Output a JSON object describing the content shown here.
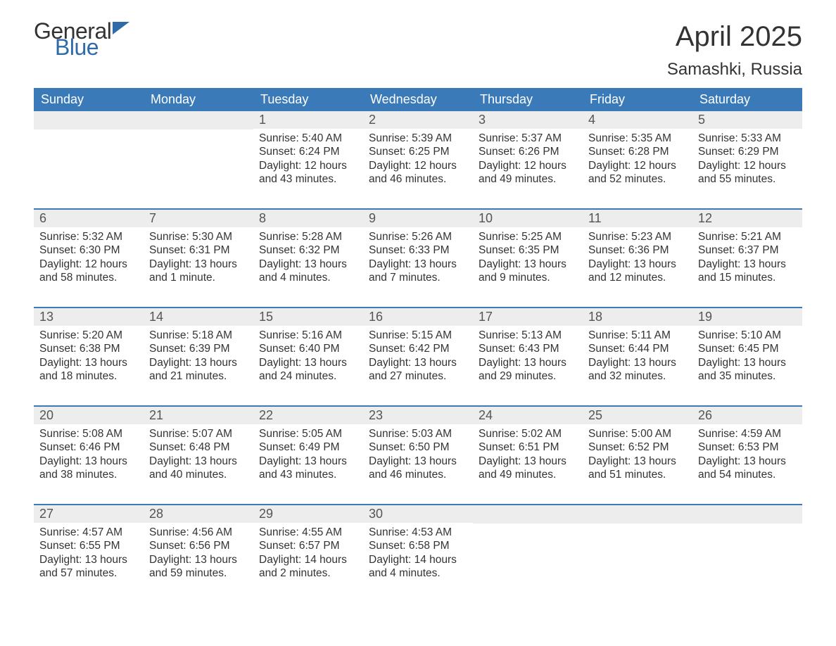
{
  "logo": {
    "text1": "General",
    "text2": "Blue"
  },
  "header": {
    "month_title": "April 2025",
    "location": "Samashki, Russia"
  },
  "colors": {
    "header_bg": "#3a7ab8",
    "header_text": "#ffffff",
    "date_bar_bg": "#ededed",
    "date_bar_text": "#555555",
    "body_text": "#333333",
    "accent_rule": "#3a7ab8",
    "logo_blue": "#2f6ba8",
    "page_bg": "#ffffff"
  },
  "day_names": [
    "Sunday",
    "Monday",
    "Tuesday",
    "Wednesday",
    "Thursday",
    "Friday",
    "Saturday"
  ],
  "weeks": [
    [
      {
        "date": "",
        "sunrise": "",
        "sunset": "",
        "daylight": ""
      },
      {
        "date": "",
        "sunrise": "",
        "sunset": "",
        "daylight": ""
      },
      {
        "date": "1",
        "sunrise": "Sunrise: 5:40 AM",
        "sunset": "Sunset: 6:24 PM",
        "daylight": "Daylight: 12 hours and 43 minutes."
      },
      {
        "date": "2",
        "sunrise": "Sunrise: 5:39 AM",
        "sunset": "Sunset: 6:25 PM",
        "daylight": "Daylight: 12 hours and 46 minutes."
      },
      {
        "date": "3",
        "sunrise": "Sunrise: 5:37 AM",
        "sunset": "Sunset: 6:26 PM",
        "daylight": "Daylight: 12 hours and 49 minutes."
      },
      {
        "date": "4",
        "sunrise": "Sunrise: 5:35 AM",
        "sunset": "Sunset: 6:28 PM",
        "daylight": "Daylight: 12 hours and 52 minutes."
      },
      {
        "date": "5",
        "sunrise": "Sunrise: 5:33 AM",
        "sunset": "Sunset: 6:29 PM",
        "daylight": "Daylight: 12 hours and 55 minutes."
      }
    ],
    [
      {
        "date": "6",
        "sunrise": "Sunrise: 5:32 AM",
        "sunset": "Sunset: 6:30 PM",
        "daylight": "Daylight: 12 hours and 58 minutes."
      },
      {
        "date": "7",
        "sunrise": "Sunrise: 5:30 AM",
        "sunset": "Sunset: 6:31 PM",
        "daylight": "Daylight: 13 hours and 1 minute."
      },
      {
        "date": "8",
        "sunrise": "Sunrise: 5:28 AM",
        "sunset": "Sunset: 6:32 PM",
        "daylight": "Daylight: 13 hours and 4 minutes."
      },
      {
        "date": "9",
        "sunrise": "Sunrise: 5:26 AM",
        "sunset": "Sunset: 6:33 PM",
        "daylight": "Daylight: 13 hours and 7 minutes."
      },
      {
        "date": "10",
        "sunrise": "Sunrise: 5:25 AM",
        "sunset": "Sunset: 6:35 PM",
        "daylight": "Daylight: 13 hours and 9 minutes."
      },
      {
        "date": "11",
        "sunrise": "Sunrise: 5:23 AM",
        "sunset": "Sunset: 6:36 PM",
        "daylight": "Daylight: 13 hours and 12 minutes."
      },
      {
        "date": "12",
        "sunrise": "Sunrise: 5:21 AM",
        "sunset": "Sunset: 6:37 PM",
        "daylight": "Daylight: 13 hours and 15 minutes."
      }
    ],
    [
      {
        "date": "13",
        "sunrise": "Sunrise: 5:20 AM",
        "sunset": "Sunset: 6:38 PM",
        "daylight": "Daylight: 13 hours and 18 minutes."
      },
      {
        "date": "14",
        "sunrise": "Sunrise: 5:18 AM",
        "sunset": "Sunset: 6:39 PM",
        "daylight": "Daylight: 13 hours and 21 minutes."
      },
      {
        "date": "15",
        "sunrise": "Sunrise: 5:16 AM",
        "sunset": "Sunset: 6:40 PM",
        "daylight": "Daylight: 13 hours and 24 minutes."
      },
      {
        "date": "16",
        "sunrise": "Sunrise: 5:15 AM",
        "sunset": "Sunset: 6:42 PM",
        "daylight": "Daylight: 13 hours and 27 minutes."
      },
      {
        "date": "17",
        "sunrise": "Sunrise: 5:13 AM",
        "sunset": "Sunset: 6:43 PM",
        "daylight": "Daylight: 13 hours and 29 minutes."
      },
      {
        "date": "18",
        "sunrise": "Sunrise: 5:11 AM",
        "sunset": "Sunset: 6:44 PM",
        "daylight": "Daylight: 13 hours and 32 minutes."
      },
      {
        "date": "19",
        "sunrise": "Sunrise: 5:10 AM",
        "sunset": "Sunset: 6:45 PM",
        "daylight": "Daylight: 13 hours and 35 minutes."
      }
    ],
    [
      {
        "date": "20",
        "sunrise": "Sunrise: 5:08 AM",
        "sunset": "Sunset: 6:46 PM",
        "daylight": "Daylight: 13 hours and 38 minutes."
      },
      {
        "date": "21",
        "sunrise": "Sunrise: 5:07 AM",
        "sunset": "Sunset: 6:48 PM",
        "daylight": "Daylight: 13 hours and 40 minutes."
      },
      {
        "date": "22",
        "sunrise": "Sunrise: 5:05 AM",
        "sunset": "Sunset: 6:49 PM",
        "daylight": "Daylight: 13 hours and 43 minutes."
      },
      {
        "date": "23",
        "sunrise": "Sunrise: 5:03 AM",
        "sunset": "Sunset: 6:50 PM",
        "daylight": "Daylight: 13 hours and 46 minutes."
      },
      {
        "date": "24",
        "sunrise": "Sunrise: 5:02 AM",
        "sunset": "Sunset: 6:51 PM",
        "daylight": "Daylight: 13 hours and 49 minutes."
      },
      {
        "date": "25",
        "sunrise": "Sunrise: 5:00 AM",
        "sunset": "Sunset: 6:52 PM",
        "daylight": "Daylight: 13 hours and 51 minutes."
      },
      {
        "date": "26",
        "sunrise": "Sunrise: 4:59 AM",
        "sunset": "Sunset: 6:53 PM",
        "daylight": "Daylight: 13 hours and 54 minutes."
      }
    ],
    [
      {
        "date": "27",
        "sunrise": "Sunrise: 4:57 AM",
        "sunset": "Sunset: 6:55 PM",
        "daylight": "Daylight: 13 hours and 57 minutes."
      },
      {
        "date": "28",
        "sunrise": "Sunrise: 4:56 AM",
        "sunset": "Sunset: 6:56 PM",
        "daylight": "Daylight: 13 hours and 59 minutes."
      },
      {
        "date": "29",
        "sunrise": "Sunrise: 4:55 AM",
        "sunset": "Sunset: 6:57 PM",
        "daylight": "Daylight: 14 hours and 2 minutes."
      },
      {
        "date": "30",
        "sunrise": "Sunrise: 4:53 AM",
        "sunset": "Sunset: 6:58 PM",
        "daylight": "Daylight: 14 hours and 4 minutes."
      },
      {
        "date": "",
        "sunrise": "",
        "sunset": "",
        "daylight": ""
      },
      {
        "date": "",
        "sunrise": "",
        "sunset": "",
        "daylight": ""
      },
      {
        "date": "",
        "sunrise": "",
        "sunset": "",
        "daylight": ""
      }
    ]
  ]
}
